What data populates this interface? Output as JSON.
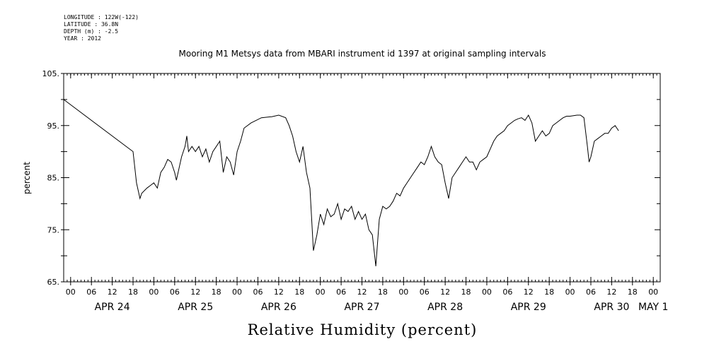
{
  "header": {
    "longitude": "LONGITUDE : 122W(-122)",
    "latitude": "LATITUDE : 36.8N",
    "depth": "DEPTH (m) : -2.5",
    "year": "YEAR : 2012"
  },
  "chart_data": {
    "type": "line",
    "title": "Mooring M1 Metsys data from MBARI instrument id 1397 at original sampling intervals",
    "xlabel": "Relative Humidity (percent)",
    "ylabel": "percent",
    "ylim": [
      65,
      105
    ],
    "y_ticks": [
      65,
      75,
      85,
      95,
      105
    ],
    "y_tick_labels": [
      "65.",
      "75.",
      "85.",
      "95.",
      "105."
    ],
    "x_units": "hours since 2012-04-24 00:00",
    "xlim": [
      -2,
      170
    ],
    "hour_ticks": [
      {
        "x": 0,
        "label": "00"
      },
      {
        "x": 6,
        "label": "06"
      },
      {
        "x": 12,
        "label": "12"
      },
      {
        "x": 18,
        "label": "18"
      },
      {
        "x": 24,
        "label": "00"
      },
      {
        "x": 30,
        "label": "06"
      },
      {
        "x": 36,
        "label": "12"
      },
      {
        "x": 42,
        "label": "18"
      },
      {
        "x": 48,
        "label": "00"
      },
      {
        "x": 54,
        "label": "06"
      },
      {
        "x": 60,
        "label": "12"
      },
      {
        "x": 66,
        "label": "18"
      },
      {
        "x": 72,
        "label": "00"
      },
      {
        "x": 78,
        "label": "06"
      },
      {
        "x": 84,
        "label": "12"
      },
      {
        "x": 90,
        "label": "18"
      },
      {
        "x": 96,
        "label": "00"
      },
      {
        "x": 102,
        "label": "06"
      },
      {
        "x": 108,
        "label": "12"
      },
      {
        "x": 114,
        "label": "18"
      },
      {
        "x": 120,
        "label": "00"
      },
      {
        "x": 126,
        "label": "06"
      },
      {
        "x": 132,
        "label": "12"
      },
      {
        "x": 138,
        "label": "18"
      },
      {
        "x": 144,
        "label": "00"
      },
      {
        "x": 150,
        "label": "06"
      },
      {
        "x": 156,
        "label": "12"
      },
      {
        "x": 162,
        "label": "18"
      },
      {
        "x": 168,
        "label": "00"
      }
    ],
    "day_labels": [
      {
        "x": 12,
        "label": "APR 24"
      },
      {
        "x": 36,
        "label": "APR 25"
      },
      {
        "x": 60,
        "label": "APR 26"
      },
      {
        "x": 84,
        "label": "APR 27"
      },
      {
        "x": 108,
        "label": "APR 28"
      },
      {
        "x": 132,
        "label": "APR 29"
      },
      {
        "x": 156,
        "label": "APR 30"
      },
      {
        "x": 168,
        "label": "MAY  1"
      }
    ],
    "grid": false,
    "series": [
      {
        "points": [
          [
            -2,
            100
          ],
          [
            18,
            90
          ],
          [
            19,
            84
          ],
          [
            20,
            81
          ],
          [
            20.5,
            82
          ],
          [
            22,
            83
          ],
          [
            23,
            83.5
          ],
          [
            24,
            84
          ],
          [
            25,
            83
          ],
          [
            26,
            86
          ],
          [
            27,
            87
          ],
          [
            28,
            88.5
          ],
          [
            29,
            88
          ],
          [
            30,
            86
          ],
          [
            30.5,
            84.5
          ],
          [
            31,
            86
          ],
          [
            32,
            89
          ],
          [
            33,
            91
          ],
          [
            33.5,
            93
          ],
          [
            34,
            90
          ],
          [
            35,
            91
          ],
          [
            36,
            90
          ],
          [
            37,
            91
          ],
          [
            38,
            89
          ],
          [
            39,
            90.5
          ],
          [
            40,
            88
          ],
          [
            41,
            90
          ],
          [
            42,
            91
          ],
          [
            43,
            92
          ],
          [
            44,
            86
          ],
          [
            45,
            89
          ],
          [
            46,
            88
          ],
          [
            47,
            85.5
          ],
          [
            48,
            90
          ],
          [
            49,
            92
          ],
          [
            50,
            94.5
          ],
          [
            52,
            95.5
          ],
          [
            55,
            96.5
          ],
          [
            58,
            96.7
          ],
          [
            60,
            97
          ],
          [
            62,
            96.5
          ],
          [
            63,
            95
          ],
          [
            64,
            93
          ],
          [
            65,
            90
          ],
          [
            66,
            88
          ],
          [
            67,
            91
          ],
          [
            68,
            86
          ],
          [
            69,
            83
          ],
          [
            70,
            71
          ],
          [
            71,
            74
          ],
          [
            72,
            78
          ],
          [
            73,
            76
          ],
          [
            74,
            79
          ],
          [
            75,
            77.5
          ],
          [
            76,
            78
          ],
          [
            77,
            80
          ],
          [
            78,
            77
          ],
          [
            79,
            79
          ],
          [
            80,
            78.5
          ],
          [
            81,
            79.5
          ],
          [
            82,
            77
          ],
          [
            83,
            78.5
          ],
          [
            84,
            77
          ],
          [
            85,
            78
          ],
          [
            86,
            75
          ],
          [
            87,
            74
          ],
          [
            88,
            68
          ],
          [
            89,
            77
          ],
          [
            90,
            79.5
          ],
          [
            91,
            79
          ],
          [
            92,
            79.5
          ],
          [
            93,
            80.5
          ],
          [
            94,
            82
          ],
          [
            95,
            81.5
          ],
          [
            96,
            83
          ],
          [
            97,
            84
          ],
          [
            98,
            85
          ],
          [
            99,
            86
          ],
          [
            100,
            87
          ],
          [
            101,
            88
          ],
          [
            102,
            87.5
          ],
          [
            103,
            89
          ],
          [
            104,
            91
          ],
          [
            105,
            89
          ],
          [
            106,
            88
          ],
          [
            107,
            87.5
          ],
          [
            108,
            84
          ],
          [
            109,
            81
          ],
          [
            110,
            85
          ],
          [
            111,
            86
          ],
          [
            112,
            87
          ],
          [
            113,
            88
          ],
          [
            114,
            89
          ],
          [
            115,
            88
          ],
          [
            116,
            88
          ],
          [
            117,
            86.5
          ],
          [
            118,
            88
          ],
          [
            119,
            88.5
          ],
          [
            120,
            89
          ],
          [
            121,
            90.5
          ],
          [
            122,
            92
          ],
          [
            123,
            93
          ],
          [
            124,
            93.5
          ],
          [
            125,
            94
          ],
          [
            126,
            95
          ],
          [
            127,
            95.5
          ],
          [
            128,
            96
          ],
          [
            129,
            96.3
          ],
          [
            130,
            96.5
          ],
          [
            131,
            96
          ],
          [
            132,
            97
          ],
          [
            133,
            95.5
          ],
          [
            134,
            92
          ],
          [
            135,
            93
          ],
          [
            136,
            94
          ],
          [
            137,
            93
          ],
          [
            138,
            93.5
          ],
          [
            139,
            95
          ],
          [
            140,
            95.5
          ],
          [
            141,
            96
          ],
          [
            142,
            96.5
          ],
          [
            143,
            96.8
          ],
          [
            144,
            96.8
          ],
          [
            145,
            96.9
          ],
          [
            146,
            97
          ],
          [
            147,
            97
          ],
          [
            148,
            96.5
          ],
          [
            149,
            91
          ],
          [
            149.5,
            88
          ],
          [
            150,
            89
          ],
          [
            151,
            92
          ],
          [
            152,
            92.5
          ],
          [
            153,
            93
          ],
          [
            154,
            93.5
          ],
          [
            155,
            93.5
          ],
          [
            156,
            94.5
          ],
          [
            157,
            95
          ],
          [
            158,
            94
          ]
        ]
      }
    ]
  }
}
